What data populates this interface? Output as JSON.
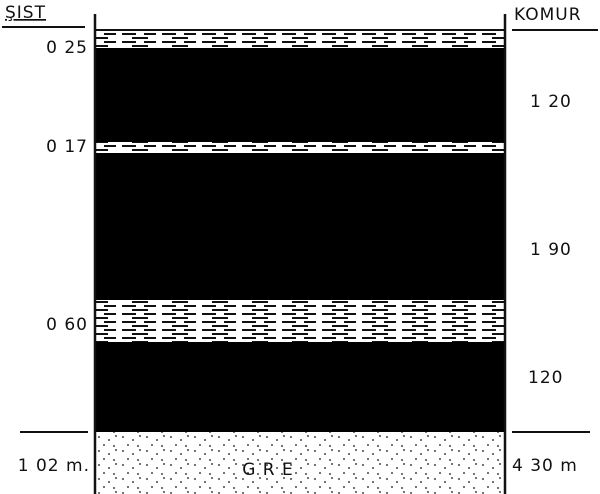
{
  "header": {
    "left": "ŞIST",
    "right": "KOMUR"
  },
  "left_labels": [
    "0 25",
    "0 17",
    "0 60",
    "1 02 m."
  ],
  "right_labels": [
    "1 20",
    "1 90",
    "120",
    "4 30 m"
  ],
  "bottom_label": "G R E"
}
